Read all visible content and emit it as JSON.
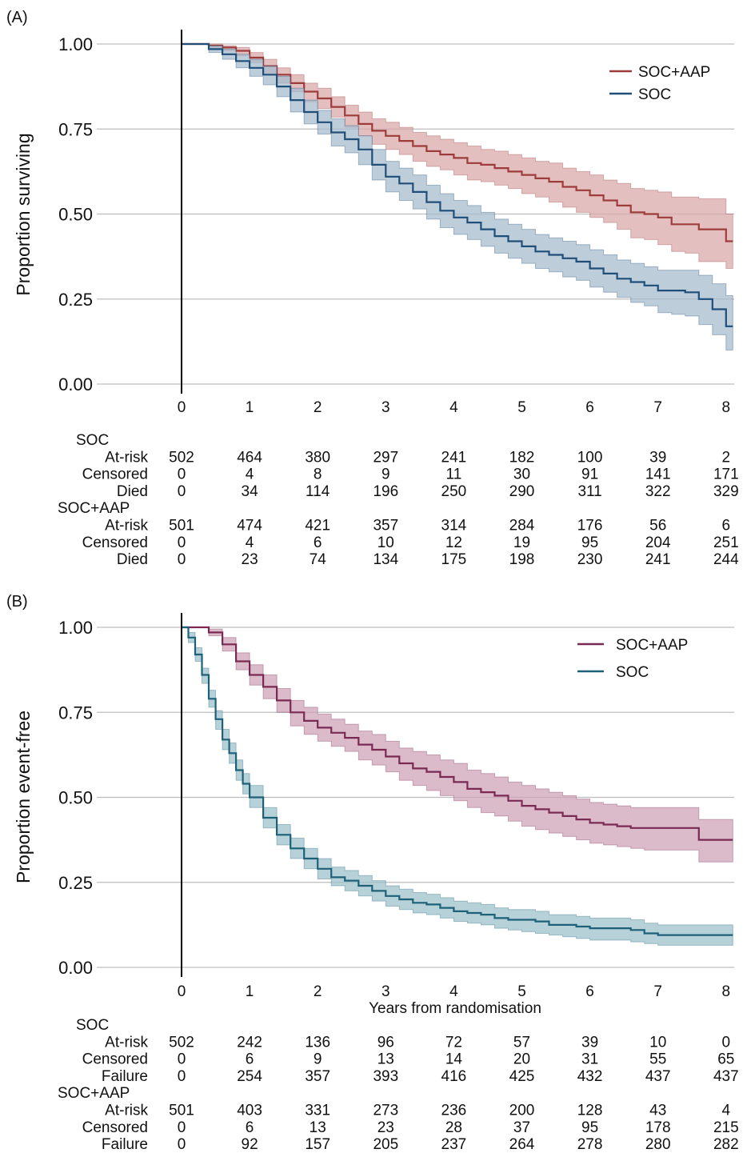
{
  "panels": [
    {
      "panel_label": "(A)",
      "ylabel": "Proportion surviving",
      "xlabel": "",
      "x_ticks": [
        "0",
        "1",
        "2",
        "3",
        "4",
        "5",
        "6",
        "7",
        "8"
      ],
      "y_ticks": [
        "0.00",
        "0.25",
        "0.50",
        "0.75",
        "1.00"
      ],
      "legend": [
        "SOC+AAP",
        "SOC"
      ],
      "risk_table": [
        {
          "group": "SOC",
          "rows": [
            {
              "label": "At-risk",
              "values": [
                "502",
                "464",
                "380",
                "297",
                "241",
                "182",
                "100",
                "39",
                "2"
              ]
            },
            {
              "label": "Censored",
              "values": [
                "0",
                "4",
                "8",
                "9",
                "11",
                "30",
                "91",
                "141",
                "171"
              ]
            },
            {
              "label": "Died",
              "values": [
                "0",
                "34",
                "114",
                "196",
                "250",
                "290",
                "311",
                "322",
                "329"
              ]
            }
          ]
        },
        {
          "group": "SOC+AAP",
          "rows": [
            {
              "label": "At-risk",
              "values": [
                "501",
                "474",
                "421",
                "357",
                "314",
                "284",
                "176",
                "56",
                "6"
              ]
            },
            {
              "label": "Censored",
              "values": [
                "0",
                "4",
                "6",
                "10",
                "12",
                "19",
                "95",
                "204",
                "251"
              ]
            },
            {
              "label": "Died",
              "values": [
                "0",
                "23",
                "74",
                "134",
                "175",
                "198",
                "230",
                "241",
                "244"
              ]
            }
          ]
        }
      ]
    },
    {
      "panel_label": "(B)",
      "ylabel": "Proportion event-free",
      "xlabel": "Years from randomisation",
      "x_ticks": [
        "0",
        "1",
        "2",
        "3",
        "4",
        "5",
        "6",
        "7",
        "8"
      ],
      "y_ticks": [
        "0.00",
        "0.25",
        "0.50",
        "0.75",
        "1.00"
      ],
      "legend": [
        "SOC+AAP",
        "SOC"
      ],
      "risk_table": [
        {
          "group": "SOC",
          "rows": [
            {
              "label": "At-risk",
              "values": [
                "502",
                "242",
                "136",
                "96",
                "72",
                "57",
                "39",
                "10",
                "0"
              ]
            },
            {
              "label": "Censored",
              "values": [
                "0",
                "6",
                "9",
                "13",
                "14",
                "20",
                "31",
                "55",
                "65"
              ]
            },
            {
              "label": "Failure",
              "values": [
                "0",
                "254",
                "357",
                "393",
                "416",
                "425",
                "432",
                "437",
                "437"
              ]
            }
          ]
        },
        {
          "group": "SOC+AAP",
          "rows": [
            {
              "label": "At-risk",
              "values": [
                "501",
                "403",
                "331",
                "273",
                "236",
                "200",
                "128",
                "43",
                "4"
              ]
            },
            {
              "label": "Censored",
              "values": [
                "0",
                "6",
                "13",
                "23",
                "28",
                "37",
                "95",
                "178",
                "215"
              ]
            },
            {
              "label": "Failure",
              "values": [
                "0",
                "92",
                "157",
                "205",
                "237",
                "264",
                "278",
                "280",
                "282"
              ]
            }
          ]
        }
      ]
    }
  ],
  "chart_data": [
    {
      "type": "line",
      "subtype": "step",
      "xlim": [
        -1,
        8.1
      ],
      "ylim": [
        0,
        1
      ],
      "grid": "horizontal",
      "legend_position": "top-right",
      "series": [
        {
          "name": "SOC+AAP",
          "color": "#9e3b3b",
          "band_color": "#d9a9ab",
          "x": [
            0,
            0.2,
            0.4,
            0.6,
            0.8,
            1.0,
            1.2,
            1.4,
            1.6,
            1.8,
            2.0,
            2.2,
            2.4,
            2.6,
            2.8,
            3.0,
            3.2,
            3.4,
            3.6,
            3.8,
            4.0,
            4.2,
            4.4,
            4.6,
            4.8,
            5.0,
            5.2,
            5.4,
            5.6,
            5.8,
            6.0,
            6.2,
            6.4,
            6.6,
            6.8,
            7.0,
            7.2,
            7.4,
            7.6,
            7.8,
            8.0
          ],
          "y": [
            1.0,
            1.0,
            0.995,
            0.99,
            0.98,
            0.96,
            0.935,
            0.91,
            0.885,
            0.86,
            0.84,
            0.815,
            0.79,
            0.765,
            0.745,
            0.73,
            0.715,
            0.7,
            0.685,
            0.675,
            0.665,
            0.65,
            0.645,
            0.635,
            0.625,
            0.615,
            0.605,
            0.595,
            0.58,
            0.57,
            0.555,
            0.54,
            0.525,
            0.505,
            0.5,
            0.49,
            0.47,
            0.47,
            0.455,
            0.455,
            0.42
          ],
          "lower": [
            1.0,
            1.0,
            0.99,
            0.98,
            0.965,
            0.945,
            0.915,
            0.885,
            0.86,
            0.83,
            0.81,
            0.785,
            0.755,
            0.73,
            0.705,
            0.69,
            0.675,
            0.655,
            0.64,
            0.63,
            0.615,
            0.6,
            0.595,
            0.585,
            0.575,
            0.56,
            0.55,
            0.535,
            0.52,
            0.505,
            0.49,
            0.475,
            0.455,
            0.43,
            0.425,
            0.41,
            0.39,
            0.385,
            0.36,
            0.36,
            0.34
          ],
          "upper": [
            1.0,
            1.0,
            1.0,
            0.995,
            0.99,
            0.975,
            0.955,
            0.93,
            0.91,
            0.885,
            0.87,
            0.845,
            0.82,
            0.8,
            0.78,
            0.77,
            0.755,
            0.74,
            0.73,
            0.72,
            0.71,
            0.7,
            0.69,
            0.685,
            0.675,
            0.665,
            0.655,
            0.65,
            0.635,
            0.625,
            0.615,
            0.6,
            0.59,
            0.575,
            0.57,
            0.565,
            0.55,
            0.55,
            0.545,
            0.545,
            0.5
          ]
        },
        {
          "name": "SOC",
          "color": "#1f4e79",
          "band_color": "#a7bccd",
          "x": [
            0,
            0.2,
            0.4,
            0.6,
            0.8,
            1.0,
            1.2,
            1.4,
            1.6,
            1.8,
            2.0,
            2.2,
            2.4,
            2.6,
            2.8,
            3.0,
            3.2,
            3.4,
            3.6,
            3.8,
            4.0,
            4.2,
            4.4,
            4.6,
            4.8,
            5.0,
            5.2,
            5.4,
            5.6,
            5.8,
            6.0,
            6.2,
            6.4,
            6.6,
            6.8,
            7.0,
            7.2,
            7.4,
            7.6,
            7.8,
            8.0
          ],
          "y": [
            1.0,
            1.0,
            0.985,
            0.97,
            0.95,
            0.93,
            0.91,
            0.875,
            0.835,
            0.8,
            0.77,
            0.74,
            0.72,
            0.69,
            0.645,
            0.61,
            0.59,
            0.565,
            0.535,
            0.51,
            0.49,
            0.475,
            0.455,
            0.435,
            0.42,
            0.405,
            0.39,
            0.38,
            0.37,
            0.36,
            0.34,
            0.325,
            0.31,
            0.3,
            0.29,
            0.275,
            0.275,
            0.27,
            0.25,
            0.22,
            0.17
          ],
          "lower": [
            1.0,
            1.0,
            0.975,
            0.955,
            0.93,
            0.905,
            0.88,
            0.845,
            0.8,
            0.765,
            0.735,
            0.7,
            0.68,
            0.645,
            0.6,
            0.565,
            0.54,
            0.515,
            0.485,
            0.46,
            0.44,
            0.425,
            0.405,
            0.385,
            0.37,
            0.355,
            0.34,
            0.33,
            0.315,
            0.305,
            0.285,
            0.27,
            0.255,
            0.24,
            0.23,
            0.21,
            0.205,
            0.2,
            0.175,
            0.145,
            0.1
          ],
          "upper": [
            1.0,
            1.0,
            0.995,
            0.985,
            0.97,
            0.955,
            0.935,
            0.905,
            0.87,
            0.835,
            0.805,
            0.78,
            0.76,
            0.73,
            0.69,
            0.655,
            0.635,
            0.615,
            0.585,
            0.56,
            0.54,
            0.525,
            0.505,
            0.485,
            0.47,
            0.455,
            0.44,
            0.43,
            0.42,
            0.41,
            0.395,
            0.38,
            0.365,
            0.355,
            0.345,
            0.335,
            0.335,
            0.335,
            0.32,
            0.295,
            0.26
          ]
        }
      ]
    },
    {
      "type": "line",
      "subtype": "step",
      "xlim": [
        -1,
        8.1
      ],
      "ylim": [
        0,
        1
      ],
      "grid": "horizontal",
      "legend_position": "top-right",
      "series": [
        {
          "name": "SOC+AAP",
          "color": "#7a2a52",
          "band_color": "#cfa3b8",
          "x": [
            0,
            0.2,
            0.4,
            0.6,
            0.8,
            1.0,
            1.2,
            1.4,
            1.6,
            1.8,
            2.0,
            2.2,
            2.4,
            2.6,
            2.8,
            3.0,
            3.2,
            3.4,
            3.6,
            3.8,
            4.0,
            4.2,
            4.4,
            4.6,
            4.8,
            5.0,
            5.2,
            5.4,
            5.6,
            5.8,
            6.0,
            6.2,
            6.4,
            6.6,
            6.8,
            7.0,
            7.2,
            7.4,
            7.6,
            7.8,
            8.0
          ],
          "y": [
            1.0,
            1.0,
            0.985,
            0.95,
            0.9,
            0.86,
            0.825,
            0.785,
            0.75,
            0.725,
            0.705,
            0.69,
            0.675,
            0.655,
            0.64,
            0.62,
            0.6,
            0.585,
            0.575,
            0.56,
            0.545,
            0.525,
            0.515,
            0.505,
            0.49,
            0.475,
            0.465,
            0.455,
            0.445,
            0.435,
            0.425,
            0.42,
            0.415,
            0.41,
            0.41,
            0.41,
            0.41,
            0.41,
            0.375,
            0.375,
            0.375
          ],
          "lower": [
            1.0,
            1.0,
            0.975,
            0.93,
            0.875,
            0.83,
            0.79,
            0.75,
            0.71,
            0.685,
            0.665,
            0.65,
            0.635,
            0.61,
            0.595,
            0.575,
            0.55,
            0.535,
            0.52,
            0.505,
            0.49,
            0.47,
            0.455,
            0.445,
            0.43,
            0.415,
            0.405,
            0.395,
            0.385,
            0.375,
            0.365,
            0.36,
            0.355,
            0.35,
            0.345,
            0.345,
            0.345,
            0.345,
            0.31,
            0.31,
            0.31
          ],
          "upper": [
            1.0,
            1.0,
            0.995,
            0.97,
            0.925,
            0.89,
            0.86,
            0.82,
            0.785,
            0.765,
            0.745,
            0.73,
            0.715,
            0.695,
            0.685,
            0.665,
            0.645,
            0.635,
            0.625,
            0.61,
            0.6,
            0.58,
            0.57,
            0.56,
            0.545,
            0.535,
            0.525,
            0.515,
            0.505,
            0.495,
            0.485,
            0.48,
            0.475,
            0.47,
            0.47,
            0.47,
            0.47,
            0.47,
            0.435,
            0.435,
            0.435
          ]
        },
        {
          "name": "SOC",
          "color": "#1d6178",
          "band_color": "#9fc1cc",
          "x": [
            0,
            0.1,
            0.2,
            0.3,
            0.4,
            0.5,
            0.6,
            0.7,
            0.8,
            0.9,
            1.0,
            1.2,
            1.4,
            1.6,
            1.8,
            2.0,
            2.2,
            2.4,
            2.6,
            2.8,
            3.0,
            3.2,
            3.4,
            3.6,
            3.8,
            4.0,
            4.2,
            4.4,
            4.6,
            4.8,
            5.0,
            5.2,
            5.4,
            5.6,
            5.8,
            6.0,
            6.2,
            6.4,
            6.6,
            6.8,
            7.0,
            7.2,
            7.4,
            7.6,
            7.8,
            8.0
          ],
          "y": [
            1.0,
            0.97,
            0.92,
            0.86,
            0.79,
            0.73,
            0.67,
            0.63,
            0.58,
            0.54,
            0.5,
            0.44,
            0.39,
            0.35,
            0.32,
            0.29,
            0.265,
            0.255,
            0.24,
            0.225,
            0.21,
            0.2,
            0.19,
            0.185,
            0.175,
            0.165,
            0.16,
            0.155,
            0.145,
            0.14,
            0.14,
            0.135,
            0.125,
            0.125,
            0.12,
            0.115,
            0.115,
            0.115,
            0.11,
            0.1,
            0.095,
            0.095,
            0.095,
            0.095,
            0.095,
            0.095
          ],
          "lower": [
            1.0,
            0.955,
            0.9,
            0.835,
            0.765,
            0.7,
            0.64,
            0.6,
            0.55,
            0.51,
            0.47,
            0.41,
            0.36,
            0.32,
            0.29,
            0.26,
            0.24,
            0.225,
            0.21,
            0.195,
            0.18,
            0.17,
            0.16,
            0.155,
            0.145,
            0.135,
            0.13,
            0.125,
            0.115,
            0.11,
            0.105,
            0.1,
            0.095,
            0.09,
            0.085,
            0.08,
            0.08,
            0.08,
            0.075,
            0.07,
            0.065,
            0.065,
            0.065,
            0.065,
            0.065,
            0.065
          ],
          "upper": [
            1.0,
            0.985,
            0.94,
            0.88,
            0.815,
            0.755,
            0.7,
            0.66,
            0.61,
            0.57,
            0.535,
            0.47,
            0.42,
            0.38,
            0.35,
            0.32,
            0.295,
            0.285,
            0.27,
            0.255,
            0.24,
            0.23,
            0.22,
            0.215,
            0.205,
            0.195,
            0.19,
            0.185,
            0.175,
            0.17,
            0.17,
            0.165,
            0.155,
            0.155,
            0.15,
            0.145,
            0.145,
            0.145,
            0.14,
            0.13,
            0.125,
            0.125,
            0.125,
            0.125,
            0.125,
            0.125
          ]
        }
      ]
    }
  ]
}
